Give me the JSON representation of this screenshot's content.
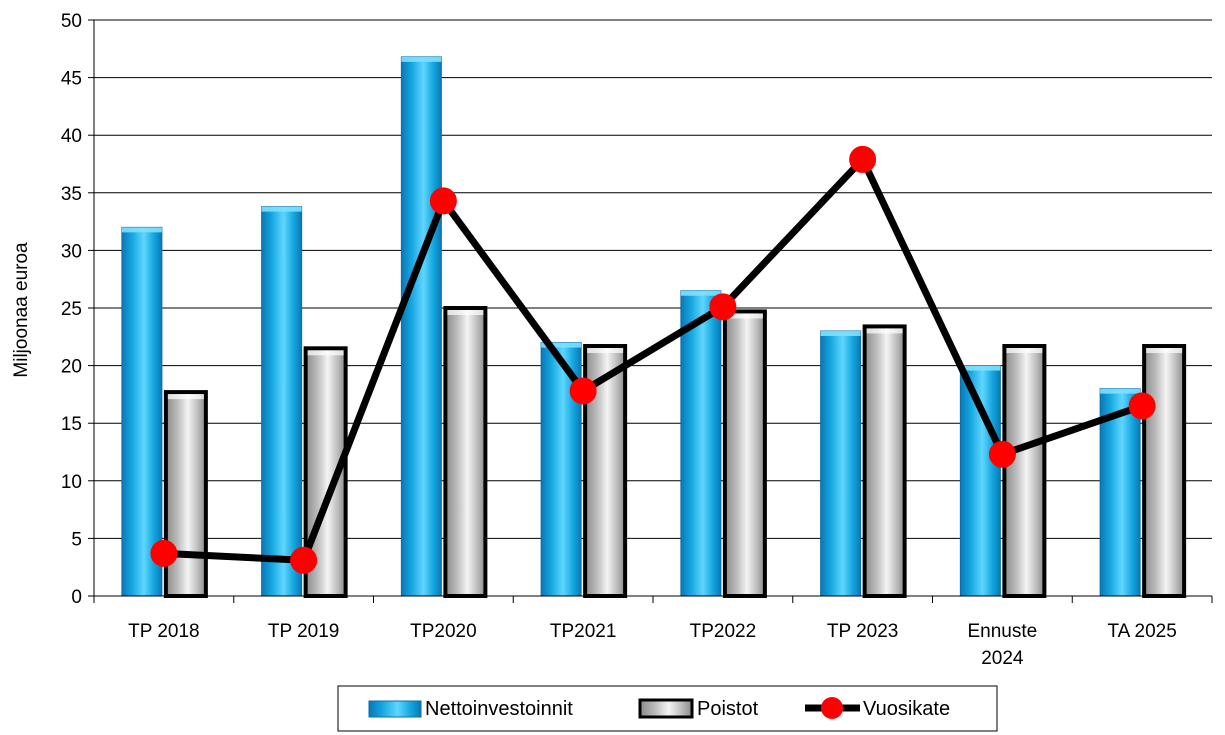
{
  "chart_data": {
    "type": "bar",
    "ylabel": "Miljoonaa euroa",
    "ylim": [
      0,
      50
    ],
    "yticks": [
      0,
      5,
      10,
      15,
      20,
      25,
      30,
      35,
      40,
      45,
      50
    ],
    "grid": true,
    "legend_position": "bottom",
    "categories": [
      [
        "TP 2018"
      ],
      [
        "TP 2019"
      ],
      [
        "TP2020"
      ],
      [
        "TP2021"
      ],
      [
        "TP2022"
      ],
      [
        "TP 2023"
      ],
      [
        "Ennuste",
        "2024"
      ],
      [
        "TA 2025"
      ]
    ],
    "series": [
      {
        "name": "Nettoinvestoinnit",
        "kind": "bar",
        "color": "#17b4ea",
        "values": [
          32.0,
          33.8,
          46.8,
          22.0,
          26.5,
          23.0,
          20.0,
          18.0
        ]
      },
      {
        "name": "Poistot",
        "kind": "bar",
        "color": "#c0c0c0",
        "values": [
          17.7,
          21.5,
          25.0,
          21.7,
          24.7,
          23.4,
          21.7,
          21.7
        ]
      },
      {
        "name": "Vuosikate",
        "kind": "line",
        "color": "#000000",
        "marker_color": "#ff0000",
        "values": [
          3.7,
          3.1,
          34.3,
          17.8,
          25.1,
          37.9,
          12.3,
          16.5
        ]
      }
    ]
  }
}
